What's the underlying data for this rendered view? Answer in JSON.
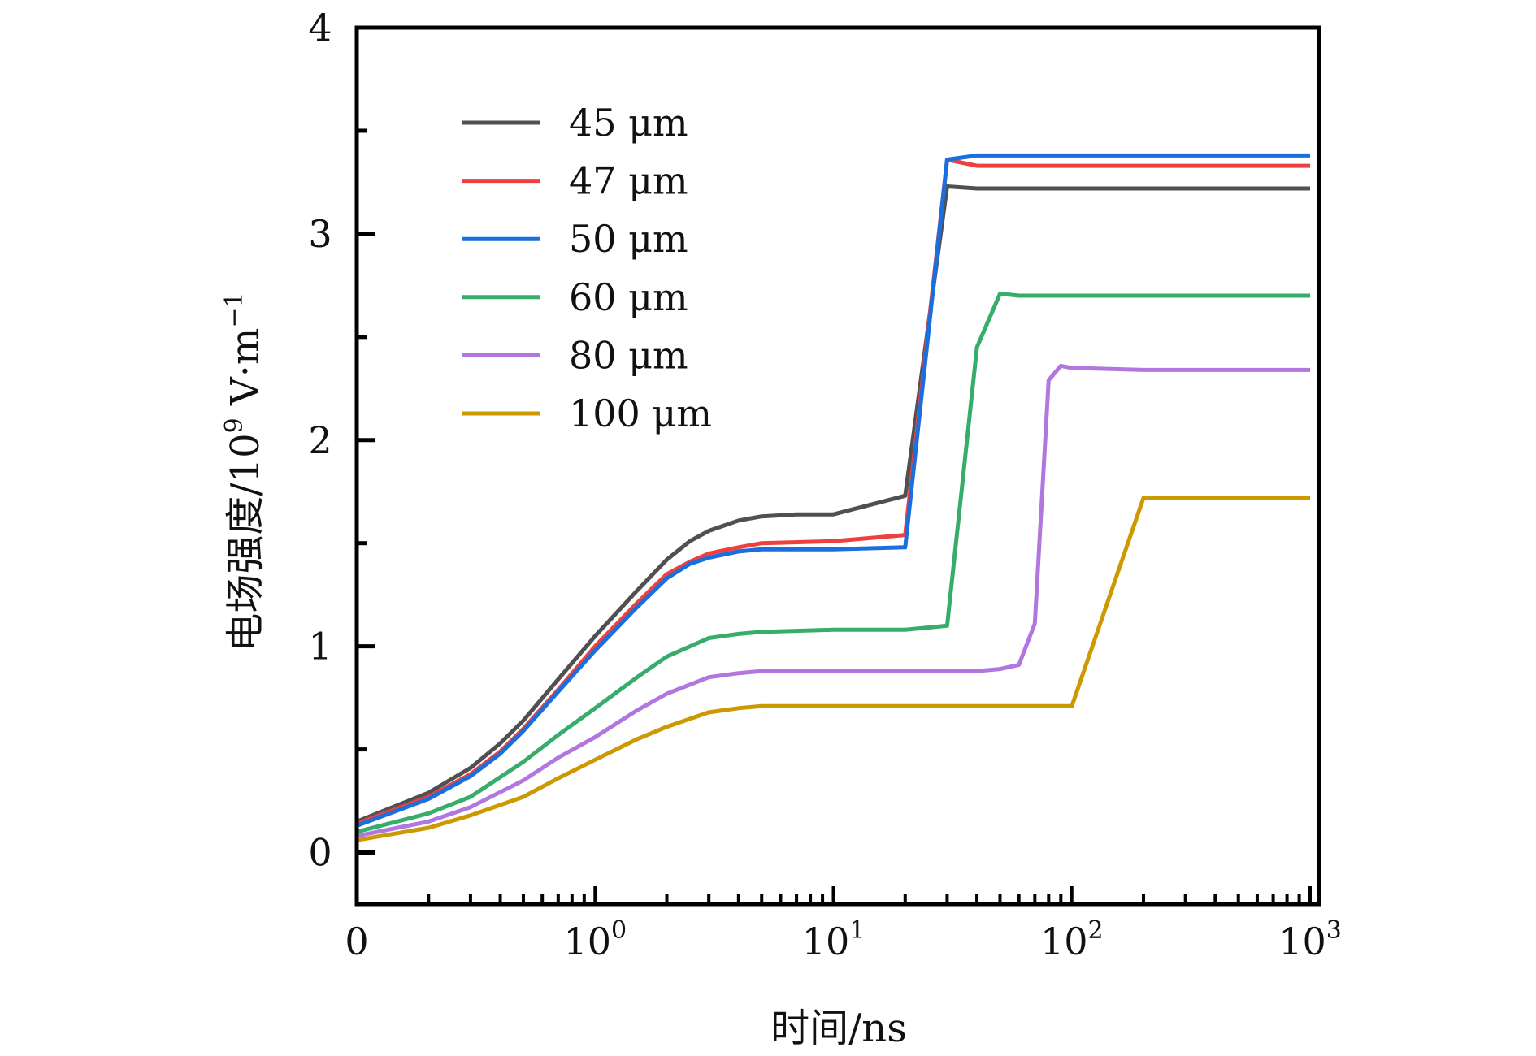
{
  "chart_data": {
    "type": "line",
    "title": "",
    "xlabel": "时间/ns",
    "ylabel": "电场强度/10^9 V·m^-1",
    "ylabel_parts": {
      "main": "电场强度/10",
      "exp": "9",
      "unit": " V·m",
      "unit_exp": "−1"
    },
    "xscale": "log",
    "xlim": [
      0.1,
      1000
    ],
    "ylim": [
      -0.25,
      4
    ],
    "grid": false,
    "legend_position": "top-left",
    "x_ticks": [
      {
        "value": 0.1,
        "base": "0",
        "exp": ""
      },
      {
        "value": 1,
        "base": "10",
        "exp": "0"
      },
      {
        "value": 10,
        "base": "10",
        "exp": "1"
      },
      {
        "value": 100,
        "base": "10",
        "exp": "2"
      },
      {
        "value": 1000,
        "base": "10",
        "exp": "3"
      }
    ],
    "y_ticks": [
      0,
      1,
      2,
      3,
      4
    ],
    "y_minor_ticks": [
      0.5,
      1.5,
      2.5,
      3.5
    ],
    "series": [
      {
        "name": "45 μm",
        "color": "#505050",
        "points": [
          [
            0.1,
            0.15
          ],
          [
            0.2,
            0.29
          ],
          [
            0.3,
            0.41
          ],
          [
            0.4,
            0.53
          ],
          [
            0.5,
            0.64
          ],
          [
            0.7,
            0.84
          ],
          [
            1,
            1.05
          ],
          [
            1.5,
            1.27
          ],
          [
            2,
            1.42
          ],
          [
            2.5,
            1.51
          ],
          [
            3,
            1.56
          ],
          [
            4,
            1.61
          ],
          [
            5,
            1.63
          ],
          [
            7,
            1.64
          ],
          [
            10,
            1.64
          ],
          [
            20,
            1.73
          ],
          [
            30,
            3.23
          ],
          [
            40,
            3.22
          ],
          [
            1000,
            3.22
          ]
        ]
      },
      {
        "name": "47 μm",
        "color": "#ef4040",
        "points": [
          [
            0.1,
            0.14
          ],
          [
            0.2,
            0.27
          ],
          [
            0.3,
            0.38
          ],
          [
            0.4,
            0.49
          ],
          [
            0.5,
            0.6
          ],
          [
            0.7,
            0.79
          ],
          [
            1,
            1.0
          ],
          [
            1.5,
            1.21
          ],
          [
            2,
            1.35
          ],
          [
            2.5,
            1.41
          ],
          [
            3,
            1.45
          ],
          [
            4,
            1.48
          ],
          [
            5,
            1.5
          ],
          [
            10,
            1.51
          ],
          [
            20,
            1.54
          ],
          [
            30,
            3.36
          ],
          [
            40,
            3.33
          ],
          [
            1000,
            3.33
          ]
        ]
      },
      {
        "name": "50 μm",
        "color": "#1a6fdf",
        "points": [
          [
            0.1,
            0.13
          ],
          [
            0.2,
            0.26
          ],
          [
            0.3,
            0.37
          ],
          [
            0.4,
            0.48
          ],
          [
            0.5,
            0.59
          ],
          [
            0.7,
            0.78
          ],
          [
            1,
            0.98
          ],
          [
            1.5,
            1.19
          ],
          [
            2,
            1.33
          ],
          [
            2.5,
            1.4
          ],
          [
            3,
            1.43
          ],
          [
            4,
            1.46
          ],
          [
            5,
            1.47
          ],
          [
            10,
            1.47
          ],
          [
            20,
            1.48
          ],
          [
            30,
            3.36
          ],
          [
            40,
            3.38
          ],
          [
            1000,
            3.38
          ]
        ]
      },
      {
        "name": "60 μm",
        "color": "#37ad6b",
        "points": [
          [
            0.1,
            0.1
          ],
          [
            0.2,
            0.19
          ],
          [
            0.3,
            0.27
          ],
          [
            0.5,
            0.44
          ],
          [
            0.7,
            0.57
          ],
          [
            1,
            0.7
          ],
          [
            1.5,
            0.85
          ],
          [
            2,
            0.95
          ],
          [
            3,
            1.04
          ],
          [
            4,
            1.06
          ],
          [
            5,
            1.07
          ],
          [
            10,
            1.08
          ],
          [
            20,
            1.08
          ],
          [
            30,
            1.1
          ],
          [
            40,
            2.45
          ],
          [
            50,
            2.71
          ],
          [
            60,
            2.7
          ],
          [
            1000,
            2.7
          ]
        ]
      },
      {
        "name": "80 μm",
        "color": "#b177de",
        "points": [
          [
            0.1,
            0.08
          ],
          [
            0.2,
            0.15
          ],
          [
            0.3,
            0.22
          ],
          [
            0.5,
            0.35
          ],
          [
            0.7,
            0.46
          ],
          [
            1,
            0.56
          ],
          [
            1.5,
            0.69
          ],
          [
            2,
            0.77
          ],
          [
            3,
            0.85
          ],
          [
            4,
            0.87
          ],
          [
            5,
            0.88
          ],
          [
            10,
            0.88
          ],
          [
            40,
            0.88
          ],
          [
            50,
            0.89
          ],
          [
            60,
            0.91
          ],
          [
            70,
            1.11
          ],
          [
            80,
            2.29
          ],
          [
            90,
            2.36
          ],
          [
            100,
            2.35
          ],
          [
            200,
            2.34
          ],
          [
            1000,
            2.34
          ]
        ]
      },
      {
        "name": "100 μm",
        "color": "#cc9900",
        "points": [
          [
            0.1,
            0.06
          ],
          [
            0.2,
            0.12
          ],
          [
            0.3,
            0.18
          ],
          [
            0.5,
            0.27
          ],
          [
            0.7,
            0.36
          ],
          [
            1,
            0.45
          ],
          [
            1.5,
            0.55
          ],
          [
            2,
            0.61
          ],
          [
            3,
            0.68
          ],
          [
            4,
            0.7
          ],
          [
            5,
            0.71
          ],
          [
            10,
            0.71
          ],
          [
            50,
            0.71
          ],
          [
            100,
            0.71
          ],
          [
            200,
            1.72
          ],
          [
            1000,
            1.72
          ]
        ]
      }
    ]
  }
}
